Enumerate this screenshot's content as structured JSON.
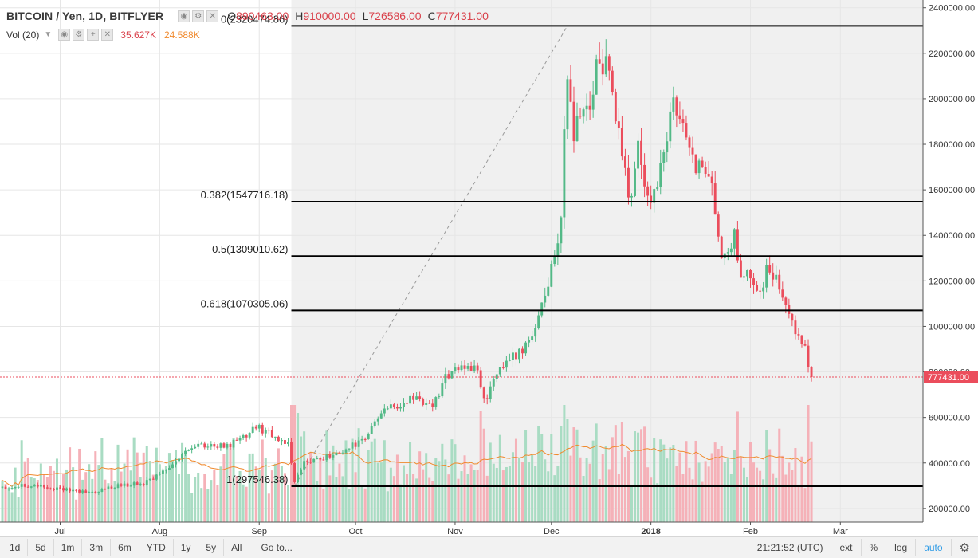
{
  "legend": {
    "symbol": "BITCOIN / Yen, 1D, BITFLYER",
    "open_label": "O",
    "open": "890463.00",
    "high_label": "H",
    "high": "910000.00",
    "low_label": "L",
    "low": "726586.00",
    "close_label": "C",
    "close": "777431.00",
    "vol_title": "Vol (20)",
    "vol_value": "35.627K",
    "vol_ma": "24.588K"
  },
  "toolbar": {
    "ranges": [
      "1d",
      "5d",
      "1m",
      "3m",
      "6m",
      "YTD",
      "1y",
      "5y",
      "All"
    ],
    "goto": "Go to...",
    "clock": "21:21:52 (UTC)",
    "ext": "ext",
    "percent": "%",
    "log": "log",
    "auto": "auto"
  },
  "chart_data": {
    "type": "candlestick",
    "title": "BITCOIN / Yen, 1D, BITFLYER",
    "price_axis": {
      "min": 140000,
      "max": 2420000,
      "ticks": [
        200000,
        400000,
        600000,
        800000,
        1000000,
        1200000,
        1400000,
        1600000,
        1800000,
        2000000,
        2200000,
        2400000
      ],
      "tick_labels": [
        "200000.00",
        "400000.00",
        "600000.00",
        "800000.00",
        "1000000.00",
        "1200000.00",
        "1400000.00",
        "1600000.00",
        "1800000.00",
        "2000000.00",
        "2200000.00",
        "2400000.00"
      ]
    },
    "time_axis": {
      "labels": [
        "Jul",
        "Aug",
        "Sep",
        "Oct",
        "Nov",
        "Dec",
        "2018",
        "Feb",
        "Mar"
      ],
      "label_days": [
        18,
        49,
        80,
        110,
        141,
        171,
        202,
        233,
        261
      ],
      "total_days": 286
    },
    "current_price": 777431,
    "current_price_label": "777431.00",
    "fib_start_day": 90,
    "fib_anchor_low_day": 91,
    "fib_anchor_high_day": 176,
    "fib_levels": [
      {
        "label": "0(2320474.86)",
        "value": 2320474.86
      },
      {
        "label": "0.382(1547716.18)",
        "value": 1547716.18
      },
      {
        "label": "0.5(1309010.62)",
        "value": 1309010.62
      },
      {
        "label": "0.618(1070305.06)",
        "value": 1070305.06
      },
      {
        "label": "1(297546.38)",
        "value": 297546.38
      }
    ],
    "price_path": [
      [
        0,
        295000
      ],
      [
        8,
        300000
      ],
      [
        18,
        285000
      ],
      [
        28,
        270000
      ],
      [
        34,
        295000
      ],
      [
        44,
        310000
      ],
      [
        50,
        360000
      ],
      [
        57,
        460000
      ],
      [
        63,
        480000
      ],
      [
        70,
        470000
      ],
      [
        76,
        520000
      ],
      [
        79,
        560000
      ],
      [
        84,
        520000
      ],
      [
        89,
        480000
      ],
      [
        91,
        310000
      ],
      [
        94,
        400000
      ],
      [
        97,
        410000
      ],
      [
        102,
        430000
      ],
      [
        108,
        470000
      ],
      [
        113,
        500000
      ],
      [
        118,
        620000
      ],
      [
        122,
        650000
      ],
      [
        128,
        680000
      ],
      [
        134,
        640000
      ],
      [
        138,
        780000
      ],
      [
        143,
        830000
      ],
      [
        148,
        800000
      ],
      [
        150,
        670000
      ],
      [
        153,
        760000
      ],
      [
        158,
        860000
      ],
      [
        162,
        900000
      ],
      [
        166,
        1000000
      ],
      [
        169,
        1150000
      ],
      [
        172,
        1290000
      ],
      [
        174,
        1500000
      ],
      [
        176,
        2150000
      ],
      [
        178,
        1800000
      ],
      [
        180,
        1950000
      ],
      [
        183,
        1900000
      ],
      [
        185,
        2170000
      ],
      [
        188,
        2150000
      ],
      [
        191,
        1900000
      ],
      [
        194,
        1650000
      ],
      [
        196,
        1530000
      ],
      [
        198,
        1820000
      ],
      [
        200,
        1650000
      ],
      [
        202,
        1530000
      ],
      [
        204,
        1650000
      ],
      [
        207,
        1800000
      ],
      [
        209,
        1990000
      ],
      [
        212,
        1890000
      ],
      [
        214,
        1790000
      ],
      [
        216,
        1660000
      ],
      [
        219,
        1720000
      ],
      [
        221,
        1620000
      ],
      [
        224,
        1290000
      ],
      [
        226,
        1310000
      ],
      [
        228,
        1430000
      ],
      [
        230,
        1220000
      ],
      [
        233,
        1220000
      ],
      [
        236,
        1160000
      ],
      [
        238,
        1240000
      ],
      [
        241,
        1200000
      ],
      [
        243,
        1140000
      ],
      [
        246,
        1010000
      ],
      [
        248,
        960000
      ],
      [
        250,
        900000
      ],
      [
        252,
        777431
      ]
    ],
    "volume_axis": {
      "max": 760000
    },
    "volume_style": "high volume on rally/crash days, moving average overlay"
  }
}
